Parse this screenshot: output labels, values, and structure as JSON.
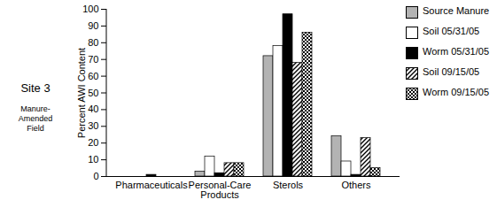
{
  "chart_data": {
    "type": "bar",
    "title": "Site 3",
    "subtitle": "Manure-Amended Field",
    "y_label": "Percent AWI Content",
    "categories": [
      "Pharmaceuticals",
      "Personal-Care Products",
      "Sterols",
      "Others"
    ],
    "series": [
      {
        "name": "Source Manure",
        "color": "#b3b3b3",
        "values": [
          0,
          3,
          72,
          24
        ]
      },
      {
        "name": "Soil 05/31/05",
        "color": "#ffffff",
        "values": [
          0,
          12,
          78,
          9
        ]
      },
      {
        "name": "Worm 05/31/05",
        "color": "#000000",
        "values": [
          1,
          2,
          97,
          1
        ]
      },
      {
        "name": "Soil 09/15/05",
        "color": "#000000",
        "values": [
          0,
          8,
          68,
          23
        ]
      },
      {
        "name": "Worm 09/15/05",
        "color": "#000000",
        "values": [
          0,
          8,
          86,
          5
        ]
      }
    ],
    "ylim": [
      0,
      100
    ],
    "yticks": [
      0,
      10,
      20,
      30,
      40,
      50,
      60,
      70,
      80,
      90,
      100
    ],
    "grid": false,
    "legend": "right"
  }
}
